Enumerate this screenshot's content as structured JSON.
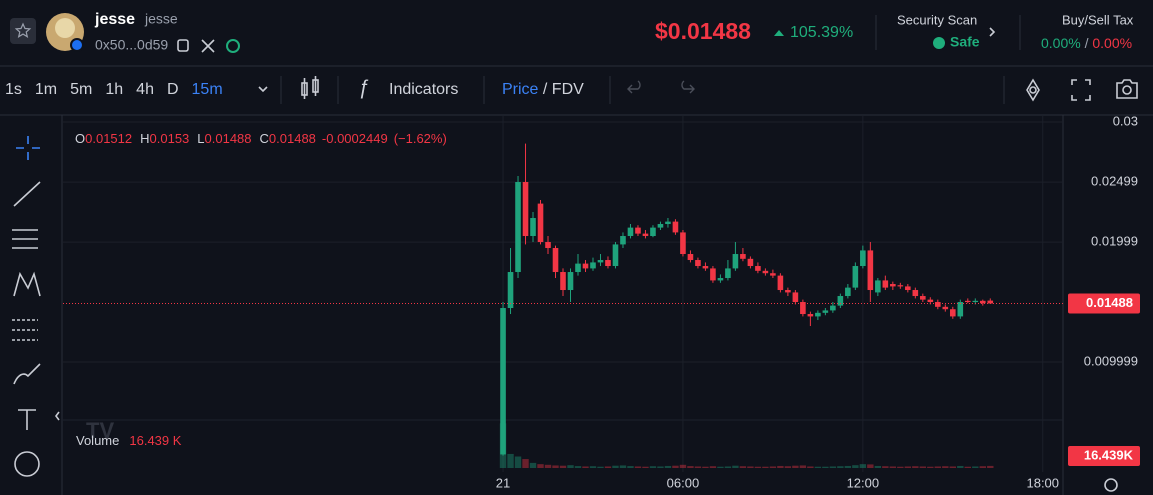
{
  "header": {
    "token_name": "jesse",
    "token_symbol": "jesse",
    "address": "0x50...0d59",
    "price": "$0.01488",
    "change": "105.39%",
    "security_title": "Security Scan",
    "security_status": "Safe",
    "tax_title": "Buy/Sell Tax",
    "buy_tax": "0.00%",
    "sell_tax": "0.00%"
  },
  "toolbar": {
    "intervals": [
      "1s",
      "1m",
      "5m",
      "1h",
      "4h",
      "D",
      "15m"
    ],
    "active_interval": 6,
    "indicators": "Indicators",
    "price": "Price",
    "fdv": "FDV"
  },
  "chart_data": {
    "type": "candlestick",
    "legend": {
      "open_label": "O",
      "open": 0.01512,
      "high_label": "H",
      "high": 0.0153,
      "low_label": "L",
      "low": 0.01488,
      "close_label": "C",
      "close": 0.01488,
      "change": -0.0002449,
      "change_percent": "(−1.62%)"
    },
    "open": [
      0.0023,
      0.0145,
      0.0175,
      0.025,
      0.0205,
      0.0232,
      0.02,
      0.0195,
      0.0175,
      0.016,
      0.0175,
      0.0182,
      0.0178,
      0.0183,
      0.0185,
      0.018,
      0.0198,
      0.0205,
      0.0212,
      0.0207,
      0.0205,
      0.0212,
      0.0215,
      0.0217,
      0.0208,
      0.019,
      0.0185,
      0.018,
      0.0178,
      0.0168,
      0.017,
      0.0178,
      0.019,
      0.0186,
      0.018,
      0.0176,
      0.0174,
      0.0172,
      0.016,
      0.0158,
      0.015,
      0.014,
      0.0138,
      0.0141,
      0.0143,
      0.0147,
      0.0155,
      0.0162,
      0.018,
      0.0193,
      0.0158,
      0.0168,
      0.0165,
      0.0164,
      0.0163,
      0.016,
      0.0155,
      0.0152,
      0.015,
      0.0146,
      0.0144,
      0.0138,
      0.0151,
      0.015,
      0.0151,
      0.01512
    ],
    "high": [
      0.015,
      0.0195,
      0.0255,
      0.0282,
      0.0225,
      0.0235,
      0.0205,
      0.0197,
      0.0178,
      0.0178,
      0.019,
      0.0185,
      0.0187,
      0.019,
      0.0188,
      0.02,
      0.0208,
      0.0215,
      0.0214,
      0.021,
      0.0214,
      0.0217,
      0.022,
      0.0219,
      0.021,
      0.0193,
      0.0187,
      0.0183,
      0.018,
      0.0173,
      0.0185,
      0.02,
      0.0195,
      0.0188,
      0.0183,
      0.0178,
      0.0177,
      0.0174,
      0.0162,
      0.016,
      0.0152,
      0.0142,
      0.0143,
      0.0145,
      0.015,
      0.0157,
      0.0165,
      0.0183,
      0.0197,
      0.02,
      0.017,
      0.0172,
      0.0167,
      0.0166,
      0.0165,
      0.0162,
      0.0157,
      0.0154,
      0.0152,
      0.0148,
      0.0146,
      0.0152,
      0.0153,
      0.0153,
      0.0152,
      0.0153
    ],
    "low": [
      0.0022,
      0.014,
      0.017,
      0.0198,
      0.02,
      0.0198,
      0.019,
      0.017,
      0.0155,
      0.015,
      0.0172,
      0.0175,
      0.0176,
      0.018,
      0.0178,
      0.0178,
      0.0195,
      0.0203,
      0.0205,
      0.0203,
      0.0204,
      0.021,
      0.0212,
      0.0206,
      0.0188,
      0.0183,
      0.0178,
      0.0176,
      0.0166,
      0.0166,
      0.0168,
      0.0176,
      0.0184,
      0.0178,
      0.0174,
      0.0172,
      0.017,
      0.0158,
      0.0155,
      0.0148,
      0.0138,
      0.013,
      0.0135,
      0.0139,
      0.0141,
      0.0145,
      0.0153,
      0.016,
      0.0178,
      0.015,
      0.0155,
      0.016,
      0.016,
      0.0161,
      0.0158,
      0.0153,
      0.015,
      0.0148,
      0.0144,
      0.0142,
      0.0136,
      0.0136,
      0.0149,
      0.0148,
      0.0147,
      0.01488
    ],
    "close": [
      0.0145,
      0.0175,
      0.025,
      0.0205,
      0.022,
      0.02,
      0.0195,
      0.0175,
      0.016,
      0.0175,
      0.0182,
      0.0178,
      0.0183,
      0.0185,
      0.018,
      0.0198,
      0.0205,
      0.0212,
      0.0207,
      0.0205,
      0.0212,
      0.0215,
      0.0217,
      0.0208,
      0.019,
      0.0185,
      0.018,
      0.0178,
      0.0168,
      0.017,
      0.0178,
      0.019,
      0.0186,
      0.018,
      0.0176,
      0.0174,
      0.0172,
      0.016,
      0.0158,
      0.015,
      0.014,
      0.0138,
      0.0141,
      0.0143,
      0.0147,
      0.0155,
      0.0162,
      0.018,
      0.0193,
      0.016,
      0.0168,
      0.0162,
      0.0163,
      0.0163,
      0.016,
      0.0155,
      0.0152,
      0.015,
      0.0146,
      0.0144,
      0.0138,
      0.015,
      0.015,
      0.0151,
      0.0149,
      0.01488
    ],
    "volume": [
      350,
      110,
      90,
      70,
      40,
      30,
      25,
      20,
      18,
      22,
      15,
      12,
      14,
      10,
      12,
      18,
      20,
      15,
      12,
      10,
      14,
      12,
      16,
      18,
      25,
      15,
      12,
      10,
      14,
      10,
      12,
      18,
      14,
      12,
      10,
      10,
      12,
      16,
      14,
      18,
      20,
      12,
      10,
      10,
      12,
      14,
      16,
      22,
      30,
      28,
      16,
      14,
      12,
      10,
      12,
      14,
      12,
      10,
      12,
      14,
      12,
      16,
      10,
      12,
      14,
      16.439
    ],
    "volume_title": "Volume",
    "volume_value_label": "16.439 K",
    "volume_axis_label": "16.439K",
    "volume_ylim": [
      0,
      360
    ],
    "ylim": [
      0.00117,
      0.03
    ],
    "yticks": [
      0.03,
      0.02499,
      0.01999,
      0.009999
    ],
    "last_price": 0.01488,
    "xlim": [
      -58.7,
      74.7
    ],
    "xticks": [
      {
        "value": 0,
        "label": "21"
      },
      {
        "value": 24,
        "label": "06:00"
      },
      {
        "value": 48,
        "label": "12:00"
      },
      {
        "value": 72,
        "label": "18:00"
      }
    ],
    "up_color": "#1fa37c",
    "down_color": "#f23645",
    "grid": true
  }
}
